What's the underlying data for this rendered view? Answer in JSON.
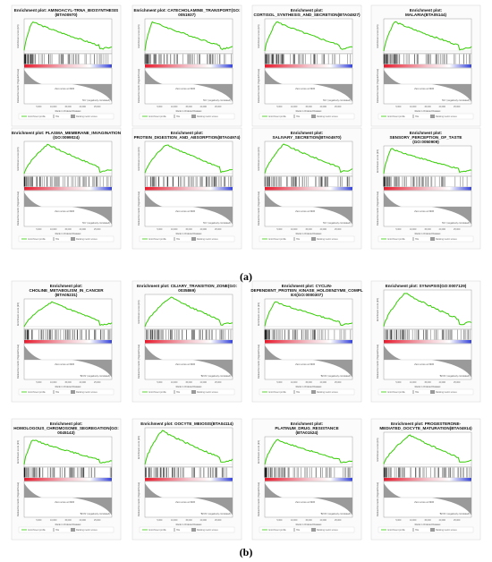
{
  "figure": {
    "panel_labels": [
      "(a)",
      "(b)"
    ]
  },
  "common": {
    "y_label_top": "Enrichment score (ES)",
    "y_label_bottom": "Ranked list metric (Signal2Noise)",
    "x_label": "Rank in Ordered Dataset",
    "zero_cross": "Zero score at 3936",
    "ticks": [
      "5,000",
      "10,000",
      "15,000",
      "20,000",
      "25,000"
    ],
    "legend": [
      "Enrichment profile",
      "Hits",
      "Ranking metric scores"
    ],
    "neg_label_a": "'NC' (negatively correlated)",
    "neg_label_b": "'BrCN' (negatively correlated)",
    "colors": {
      "curve": "#33cc00",
      "hits": "#000000",
      "pos": "#e8192c",
      "neg": "#3340d9",
      "metric": "#9a9a9a"
    }
  },
  "chart_data": [
    {
      "type": "line",
      "group": "a",
      "title": [
        "Enrichment plot: AMINOACYL-TRNA_BIOSYNTHESIS",
        "(BTA00970)"
      ],
      "profile": "early"
    },
    {
      "type": "line",
      "group": "a",
      "title": [
        "Enrichment plot: CATECHOLAMINE_TRANSPORT(GO:",
        "0051937)"
      ],
      "profile": "early"
    },
    {
      "type": "line",
      "group": "a",
      "title": [
        "Enrichment plot:",
        "CORTISOL_SYNTHESIS_AND_SECRETION(BTA04927)"
      ],
      "profile": "early"
    },
    {
      "type": "line",
      "group": "a",
      "title": [
        "Enrichment plot:",
        "MALARIA(BTA05144)"
      ],
      "profile": "early"
    },
    {
      "type": "line",
      "group": "a",
      "title": [
        "Enrichment plot: PLASMA_MEMBRANE_INVAGINATION",
        "(GO:0099024)"
      ],
      "profile": "mid"
    },
    {
      "type": "line",
      "group": "a",
      "title": [
        "Enrichment plot:",
        "PROTEIN_DIGESTION_AND_ABSORPTION(BTA04974)"
      ],
      "profile": "mid"
    },
    {
      "type": "line",
      "group": "a",
      "title": [
        "Enrichment plot:",
        "SALIVARY_SECRETION(BTA04970)"
      ],
      "profile": "mid"
    },
    {
      "type": "line",
      "group": "a",
      "title": [
        "Enrichment plot:",
        "SENSORY_PERCEPTION_OF_TASTE",
        "(GO:0050909)"
      ],
      "profile": "early"
    },
    {
      "type": "line",
      "group": "b",
      "title": [
        "Enrichment plot:",
        "CHOLINE_METABOLISM_IN_CANCER",
        "(BTA05231)"
      ],
      "profile": "mid"
    },
    {
      "type": "line",
      "group": "b",
      "title": [
        "Enrichment plot: CILIARY_TRANSITION_ZONE(GO:",
        "0035869)"
      ],
      "profile": "mid"
    },
    {
      "type": "line",
      "group": "b",
      "title": [
        "Enrichment plot: CYCLIN-",
        "DEPENDENT_PROTEIN_KINASE_HOLOENZYME_COMPL",
        "EX(GO:0000307)"
      ],
      "profile": "early"
    },
    {
      "type": "line",
      "group": "b",
      "title": [
        "Enrichment plot: SYNAPSIS(GO:0007129)"
      ],
      "profile": "mid"
    },
    {
      "type": "line",
      "group": "b",
      "title": [
        "Enrichment plot:",
        "HOMOLOGOUS_CHROMOSOME_SEGREGATION(GO:",
        "0045143)"
      ],
      "profile": "early"
    },
    {
      "type": "line",
      "group": "b",
      "title": [
        "Enrichment plot: OOCYTE_MEIOSIS(BTA04114)"
      ],
      "profile": "mid"
    },
    {
      "type": "line",
      "group": "b",
      "title": [
        "Enrichment plot:",
        "PLATINUM_DRUG_RESISTANCE",
        "(BTA01524)"
      ],
      "profile": "early"
    },
    {
      "type": "line",
      "group": "b",
      "title": [
        "Enrichment plot: PROGESTERONE-",
        "MEDIATED_OOCYTE_MATURATION(BTA04914)"
      ],
      "profile": "mid"
    }
  ]
}
